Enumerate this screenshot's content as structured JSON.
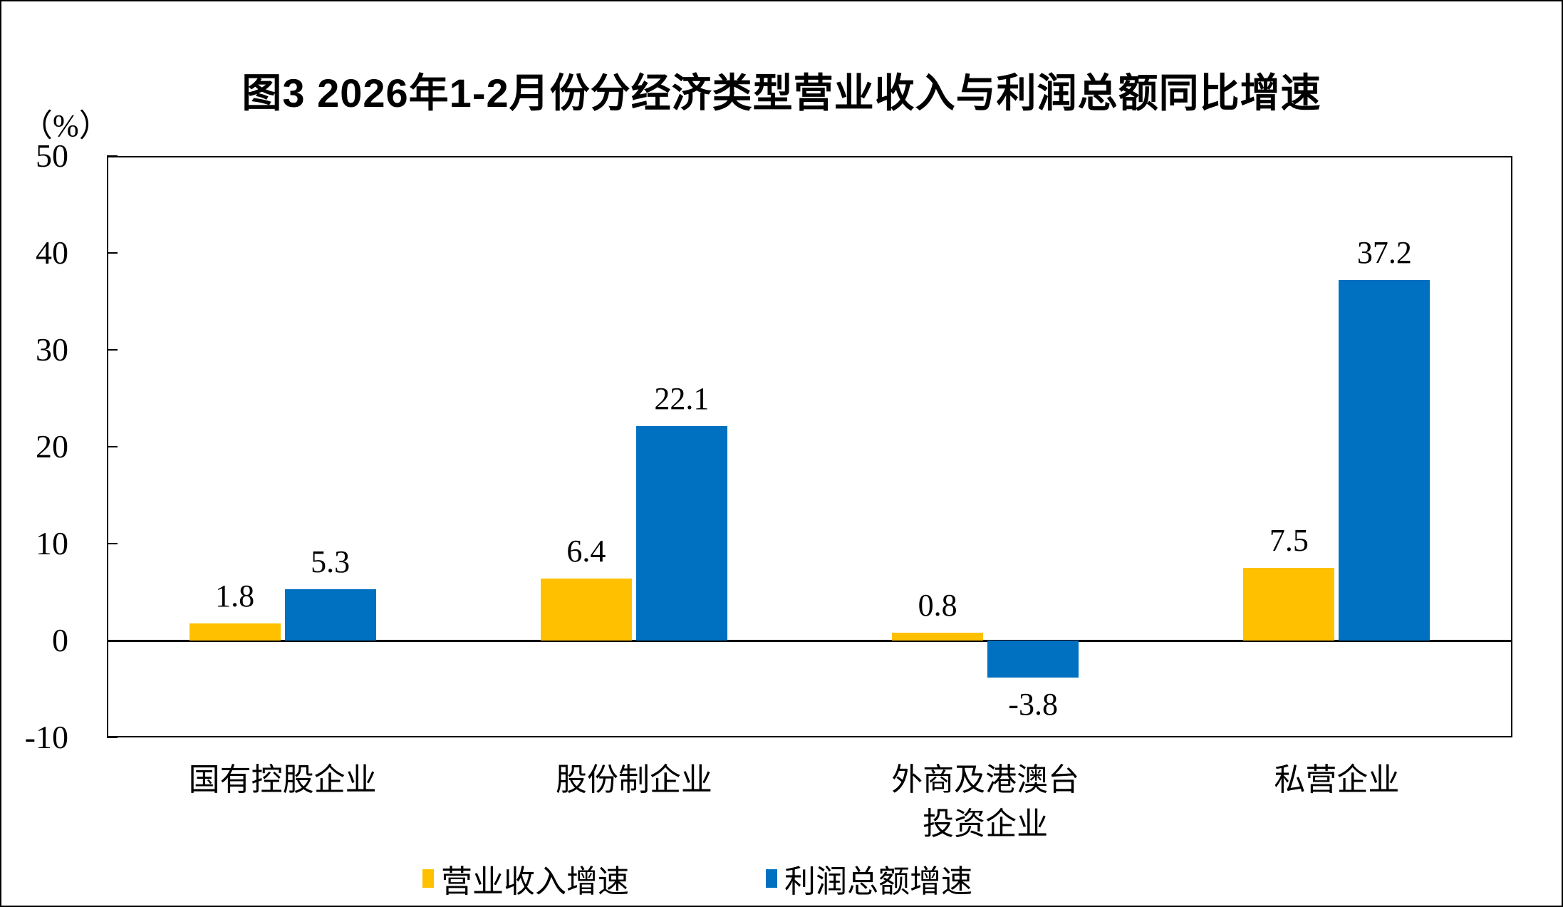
{
  "figure": {
    "title": "图3 2026年1-2月份分经济类型营业收入与利润总额同比增速",
    "unit_label": "（%）"
  },
  "chart_data": {
    "type": "bar",
    "title": "图3 2026年1-2月份分经济类型营业收入与利润总额同比增速",
    "ylabel": "（%）",
    "categories": [
      "国有控股企业",
      "股份制企业",
      "外商及港澳台\n投资企业",
      "私营企业"
    ],
    "series": [
      {
        "name": "营业收入增速",
        "color": "#FFC000",
        "values": [
          1.8,
          6.4,
          0.8,
          7.5
        ]
      },
      {
        "name": "利润总额增速",
        "color": "#0070C0",
        "values": [
          5.3,
          22.1,
          -3.8,
          37.2
        ]
      }
    ],
    "ylim": [
      -10,
      50
    ],
    "ytick_interval": 10,
    "yticks": [
      50,
      40,
      30,
      20,
      10,
      0,
      -10
    ],
    "grid": false,
    "value_labels": true,
    "legend_position": "bottom"
  }
}
